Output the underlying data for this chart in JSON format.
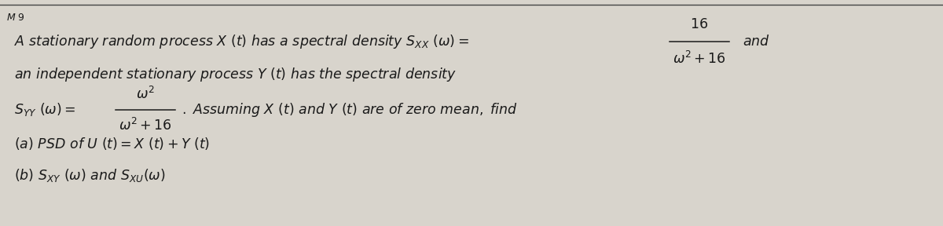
{
  "background_color": "#d8d4cc",
  "fig_width": 12.0,
  "fig_height": 2.88,
  "dpi": 100,
  "text_color": "#1a1a1a",
  "border_color": "#444444",
  "fs": 12.5
}
